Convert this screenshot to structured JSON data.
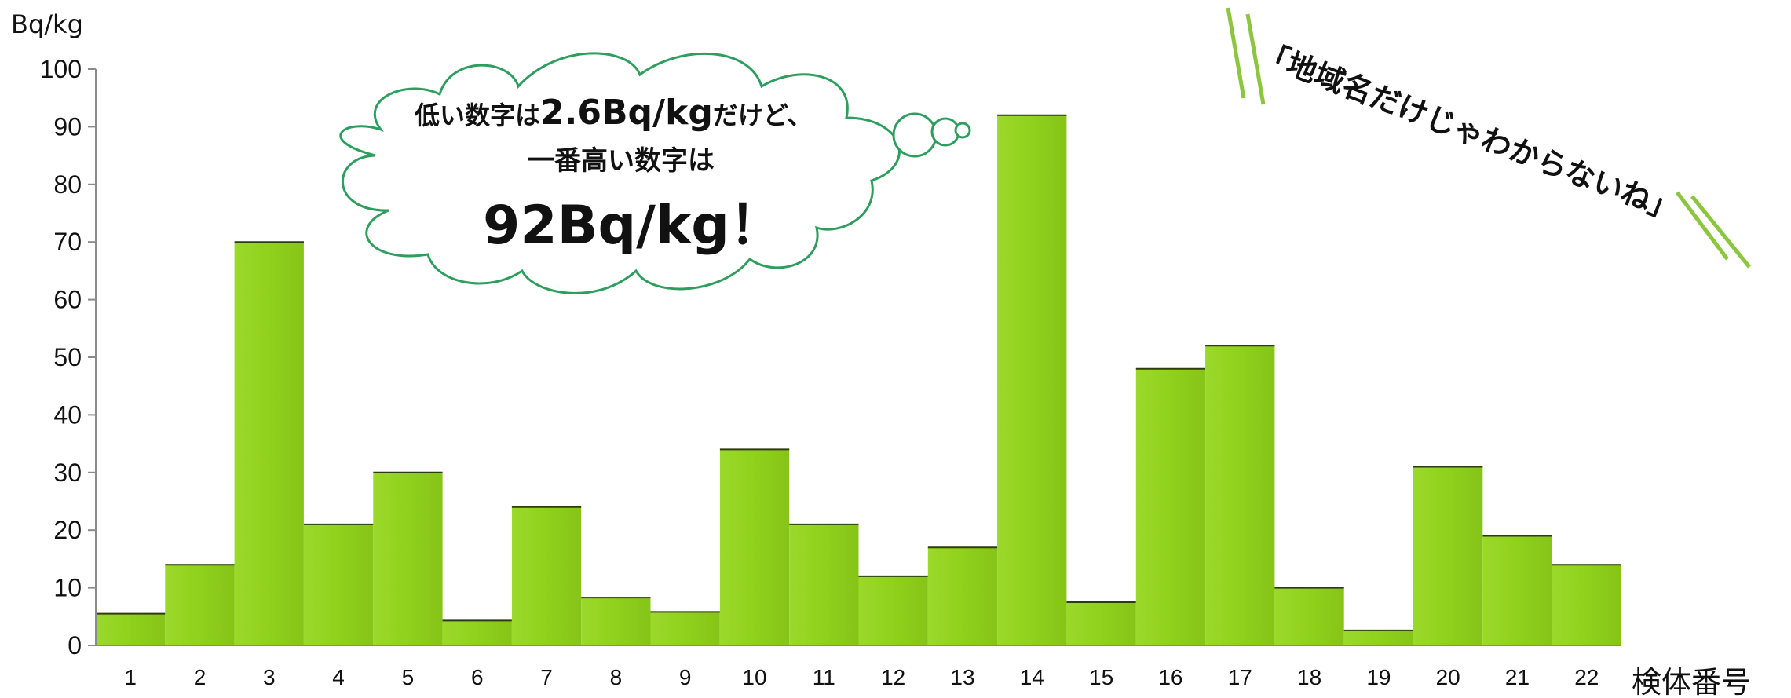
{
  "chart_data": {
    "type": "bar",
    "ylabel": "Bq/kg",
    "xlabel": "検体番号",
    "ylim": [
      0,
      100
    ],
    "yticks": [
      0,
      10,
      20,
      30,
      40,
      50,
      60,
      70,
      80,
      90,
      100
    ],
    "categories": [
      "1",
      "2",
      "3",
      "4",
      "5",
      "6",
      "7",
      "8",
      "9",
      "10",
      "11",
      "12",
      "13",
      "14",
      "15",
      "16",
      "17",
      "18",
      "19",
      "20",
      "21",
      "22"
    ],
    "values": [
      5.5,
      14,
      70,
      21,
      30,
      4.3,
      24,
      8.3,
      5.8,
      34,
      21,
      12,
      17,
      92,
      7.5,
      48,
      52,
      10,
      2.6,
      31,
      19,
      14
    ],
    "grid": false,
    "bar_color": "#8fd11c"
  },
  "annotations": {
    "bubble_line1_prefix": "低い数字は",
    "bubble_line1_value": "2.6Bq/kg",
    "bubble_line1_suffix": "だけど、",
    "bubble_line2": "一番高い数字は",
    "bubble_line3": "92Bq/kg！",
    "side_note": "「地域名だけじゃわからないね」"
  },
  "colors": {
    "bubble_outline": "#2e9e5e",
    "slash_marks": "#8cc63f"
  }
}
